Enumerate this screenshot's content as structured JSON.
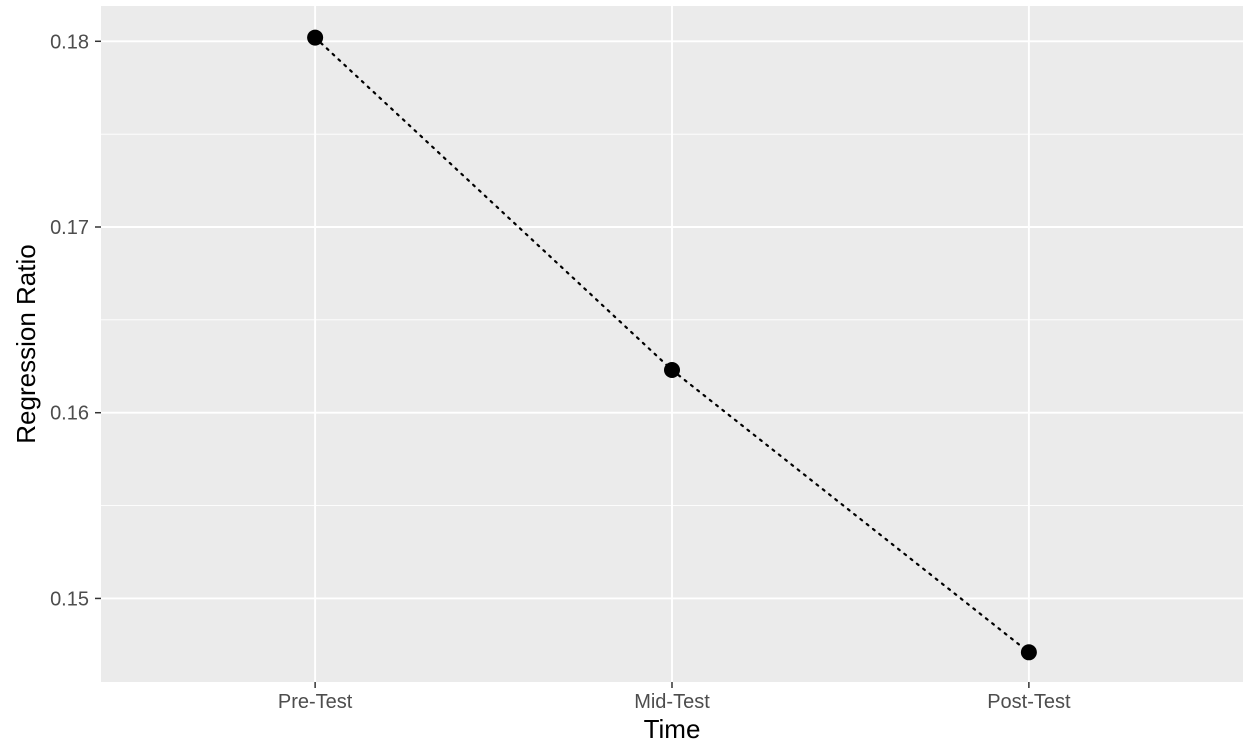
{
  "chart_data": {
    "type": "line",
    "title": "",
    "xlabel": "Time",
    "ylabel": "Regression Ratio",
    "categories": [
      "Pre-Test",
      "Mid-Test",
      "Post-Test"
    ],
    "series": [
      {
        "values": [
          0.1802,
          0.1623,
          0.1471
        ]
      }
    ],
    "yticks": [
      0.15,
      0.16,
      0.17,
      0.18
    ],
    "ytick_labels": [
      "0.15",
      "0.16",
      "0.17",
      "0.18"
    ],
    "ylim": [
      0.1455,
      0.1819
    ],
    "grid": true,
    "legend": "none",
    "line_style": "dotted",
    "colors": {
      "panel": "#ebebeb",
      "grid": "#ffffff",
      "marker": "#000000",
      "line": "#000000",
      "tick_text": "#4d4d4d"
    }
  }
}
